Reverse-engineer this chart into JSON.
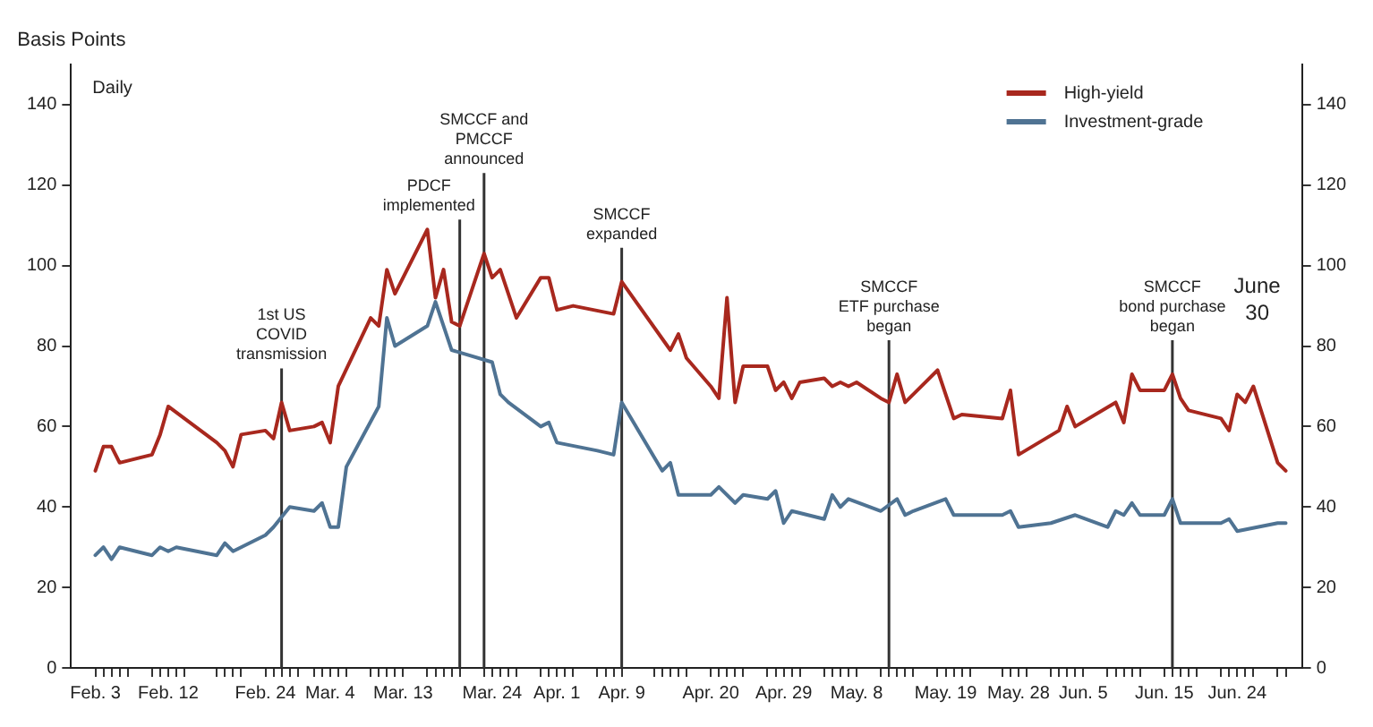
{
  "chart_data": {
    "type": "line",
    "ylabel": "Basis Points",
    "annotations": [
      "Daily",
      "June\n30"
    ],
    "legend": "top right",
    "xlim": [
      "--01-31",
      "--07-02"
    ],
    "ylim": [
      0,
      150
    ],
    "yticks": [
      0,
      20,
      40,
      60,
      80,
      100,
      120,
      140
    ],
    "y2lim": [
      0,
      150
    ],
    "y2ticks": [
      0,
      20,
      40,
      60,
      80,
      100,
      120,
      140
    ],
    "xticks": [
      {
        "value": "--02-03",
        "label": "Feb. 3"
      },
      {
        "value": "--02-04",
        "label": null
      },
      {
        "value": "--02-05",
        "label": null
      },
      {
        "value": "--02-06",
        "label": null
      },
      {
        "value": "--02-07",
        "label": null
      },
      {
        "value": "--02-10",
        "label": null
      },
      {
        "value": "--02-11",
        "label": null
      },
      {
        "value": "--02-12",
        "label": "Feb. 12"
      },
      {
        "value": "--02-13",
        "label": null
      },
      {
        "value": "--02-14",
        "label": null
      },
      {
        "value": "--02-18",
        "label": null
      },
      {
        "value": "--02-19",
        "label": null
      },
      {
        "value": "--02-20",
        "label": null
      },
      {
        "value": "--02-21",
        "label": null
      },
      {
        "value": "--02-24",
        "label": "Feb. 24"
      },
      {
        "value": "--02-25",
        "label": null
      },
      {
        "value": "--02-26",
        "label": null
      },
      {
        "value": "--02-27",
        "label": null
      },
      {
        "value": "--02-28",
        "label": null
      },
      {
        "value": "--03-02",
        "label": null
      },
      {
        "value": "--03-03",
        "label": null
      },
      {
        "value": "--03-04",
        "label": "Mar. 4"
      },
      {
        "value": "--03-05",
        "label": null
      },
      {
        "value": "--03-06",
        "label": null
      },
      {
        "value": "--03-09",
        "label": null
      },
      {
        "value": "--03-10",
        "label": null
      },
      {
        "value": "--03-11",
        "label": null
      },
      {
        "value": "--03-12",
        "label": null
      },
      {
        "value": "--03-13",
        "label": "Mar. 13"
      },
      {
        "value": "--03-16",
        "label": null
      },
      {
        "value": "--03-17",
        "label": null
      },
      {
        "value": "--03-18",
        "label": null
      },
      {
        "value": "--03-19",
        "label": null
      },
      {
        "value": "--03-20",
        "label": null
      },
      {
        "value": "--03-23",
        "label": null
      },
      {
        "value": "--03-24",
        "label": "Mar. 24"
      },
      {
        "value": "--03-25",
        "label": null
      },
      {
        "value": "--03-26",
        "label": null
      },
      {
        "value": "--03-27",
        "label": null
      },
      {
        "value": "--03-30",
        "label": null
      },
      {
        "value": "--03-31",
        "label": null
      },
      {
        "value": "--04-01",
        "label": "Apr. 1"
      },
      {
        "value": "--04-02",
        "label": null
      },
      {
        "value": "--04-03",
        "label": null
      },
      {
        "value": "--04-06",
        "label": null
      },
      {
        "value": "--04-07",
        "label": null
      },
      {
        "value": "--04-08",
        "label": null
      },
      {
        "value": "--04-09",
        "label": "Apr. 9"
      },
      {
        "value": "--04-13",
        "label": null
      },
      {
        "value": "--04-14",
        "label": null
      },
      {
        "value": "--04-15",
        "label": null
      },
      {
        "value": "--04-16",
        "label": null
      },
      {
        "value": "--04-17",
        "label": null
      },
      {
        "value": "--04-20",
        "label": "Apr. 20"
      },
      {
        "value": "--04-21",
        "label": null
      },
      {
        "value": "--04-22",
        "label": null
      },
      {
        "value": "--04-23",
        "label": null
      },
      {
        "value": "--04-24",
        "label": null
      },
      {
        "value": "--04-27",
        "label": null
      },
      {
        "value": "--04-28",
        "label": null
      },
      {
        "value": "--04-29",
        "label": "Apr. 29"
      },
      {
        "value": "--04-30",
        "label": null
      },
      {
        "value": "--05-01",
        "label": null
      },
      {
        "value": "--05-04",
        "label": null
      },
      {
        "value": "--05-05",
        "label": null
      },
      {
        "value": "--05-06",
        "label": null
      },
      {
        "value": "--05-07",
        "label": null
      },
      {
        "value": "--05-08",
        "label": "May. 8"
      },
      {
        "value": "--05-11",
        "label": null
      },
      {
        "value": "--05-12",
        "label": null
      },
      {
        "value": "--05-13",
        "label": null
      },
      {
        "value": "--05-14",
        "label": null
      },
      {
        "value": "--05-15",
        "label": null
      },
      {
        "value": "--05-18",
        "label": null
      },
      {
        "value": "--05-19",
        "label": "May. 19"
      },
      {
        "value": "--05-20",
        "label": null
      },
      {
        "value": "--05-21",
        "label": null
      },
      {
        "value": "--05-22",
        "label": null
      },
      {
        "value": "--05-26",
        "label": null
      },
      {
        "value": "--05-27",
        "label": null
      },
      {
        "value": "--05-28",
        "label": "May. 28"
      },
      {
        "value": "--05-29",
        "label": null
      },
      {
        "value": "--06-01",
        "label": null
      },
      {
        "value": "--06-02",
        "label": null
      },
      {
        "value": "--06-03",
        "label": null
      },
      {
        "value": "--06-04",
        "label": null
      },
      {
        "value": "--06-05",
        "label": "Jun. 5"
      },
      {
        "value": "--06-08",
        "label": null
      },
      {
        "value": "--06-09",
        "label": null
      },
      {
        "value": "--06-10",
        "label": null
      },
      {
        "value": "--06-11",
        "label": null
      },
      {
        "value": "--06-12",
        "label": null
      },
      {
        "value": "--06-15",
        "label": "Jun. 15"
      },
      {
        "value": "--06-16",
        "label": null
      },
      {
        "value": "--06-17",
        "label": null
      },
      {
        "value": "--06-18",
        "label": null
      },
      {
        "value": "--06-19",
        "label": null
      },
      {
        "value": "--06-22",
        "label": null
      },
      {
        "value": "--06-23",
        "label": null
      },
      {
        "value": "--06-24",
        "label": "Jun. 24"
      },
      {
        "value": "--06-25",
        "label": null
      },
      {
        "value": "--06-26",
        "label": null
      },
      {
        "value": "--06-29",
        "label": null
      },
      {
        "value": "--06-30",
        "label": null
      }
    ],
    "ref_lines": [
      {
        "axis": "x",
        "value": "--02-26",
        "label": "1st US\nCOVID\ntransmission"
      },
      {
        "axis": "x",
        "value": "--03-20",
        "label": "PDCF\nimplemented"
      },
      {
        "axis": "x",
        "value": "--03-23",
        "label": "SMCCF and\nPMCCF\nannounced"
      },
      {
        "axis": "x",
        "value": "--04-09",
        "label": "SMCCF\nexpanded"
      },
      {
        "axis": "x",
        "value": "--05-12",
        "label": "SMCCF\nETF purchase\nbegan"
      },
      {
        "axis": "x",
        "value": "--06-16",
        "label": "SMCCF\nbond purchase\nbegan"
      }
    ],
    "series": [
      {
        "name": "High-yield",
        "color": "#a8281e",
        "x": [
          "--02-03",
          "--02-04",
          "--02-05",
          "--02-06",
          "--02-10",
          "--02-11",
          "--02-12",
          "--02-18",
          "--02-19",
          "--02-20",
          "--02-21",
          "--02-24",
          "--02-25",
          "--02-26",
          "--02-27",
          "--03-02",
          "--03-03",
          "--03-04",
          "--03-05",
          "--03-09",
          "--03-10",
          "--03-11",
          "--03-12",
          "--03-16",
          "--03-17",
          "--03-18",
          "--03-19",
          "--03-20",
          "--03-23",
          "--03-24",
          "--03-25",
          "--03-27",
          "--03-30",
          "--03-31",
          "--04-01",
          "--04-03",
          "--04-08",
          "--04-09",
          "--04-15",
          "--04-16",
          "--04-17",
          "--04-20",
          "--04-21",
          "--04-22",
          "--04-23",
          "--04-24",
          "--04-27",
          "--04-28",
          "--04-29",
          "--04-30",
          "--05-01",
          "--05-04",
          "--05-05",
          "--05-06",
          "--05-07",
          "--05-08",
          "--05-11",
          "--05-12",
          "--05-13",
          "--05-14",
          "--05-18",
          "--05-20",
          "--05-21",
          "--05-26",
          "--05-27",
          "--05-28",
          "--06-02",
          "--06-03",
          "--06-04",
          "--06-09",
          "--06-10",
          "--06-11",
          "--06-12",
          "--06-15",
          "--06-16",
          "--06-17",
          "--06-18",
          "--06-22",
          "--06-23",
          "--06-24",
          "--06-25",
          "--06-26",
          "--06-29",
          "--06-30"
        ],
        "values": [
          49,
          55,
          55,
          51,
          53,
          58,
          65,
          56,
          54,
          50,
          58,
          59,
          57,
          66,
          59,
          60,
          61,
          56,
          70,
          87,
          85,
          99,
          93,
          109,
          92,
          99,
          86,
          85,
          103,
          97,
          99,
          87,
          97,
          97,
          89,
          90,
          88,
          96,
          79,
          83,
          77,
          70,
          67,
          92,
          66,
          75,
          75,
          69,
          71,
          67,
          71,
          72,
          70,
          71,
          70,
          71,
          67,
          66,
          73,
          66,
          74,
          62,
          63,
          62,
          69,
          53,
          59,
          65,
          60,
          66,
          61,
          73,
          69,
          69,
          73,
          67,
          64,
          62,
          59,
          68,
          66,
          70,
          51,
          49
        ]
      },
      {
        "name": "Investment-grade",
        "color": "#4f7393",
        "x": [
          "--02-03",
          "--02-04",
          "--02-05",
          "--02-06",
          "--02-10",
          "--02-11",
          "--02-12",
          "--02-13",
          "--02-18",
          "--02-19",
          "--02-20",
          "--02-24",
          "--02-25",
          "--02-27",
          "--03-02",
          "--03-03",
          "--03-04",
          "--03-05",
          "--03-06",
          "--03-10",
          "--03-11",
          "--03-12",
          "--03-16",
          "--03-17",
          "--03-18",
          "--03-19",
          "--03-24",
          "--03-25",
          "--03-26",
          "--03-30",
          "--03-31",
          "--04-01",
          "--04-06",
          "--04-08",
          "--04-09",
          "--04-14",
          "--04-15",
          "--04-16",
          "--04-20",
          "--04-21",
          "--04-23",
          "--04-24",
          "--04-27",
          "--04-28",
          "--04-29",
          "--04-30",
          "--05-04",
          "--05-05",
          "--05-06",
          "--05-07",
          "--05-11",
          "--05-13",
          "--05-14",
          "--05-15",
          "--05-19",
          "--05-20",
          "--05-26",
          "--05-27",
          "--05-28",
          "--06-01",
          "--06-04",
          "--06-08",
          "--06-09",
          "--06-10",
          "--06-11",
          "--06-12",
          "--06-15",
          "--06-16",
          "--06-17",
          "--06-22",
          "--06-23",
          "--06-24",
          "--06-29",
          "--06-30"
        ],
        "values": [
          28,
          30,
          27,
          30,
          28,
          30,
          29,
          30,
          28,
          31,
          29,
          33,
          35,
          40,
          39,
          41,
          35,
          35,
          50,
          65,
          87,
          80,
          85,
          91,
          85,
          79,
          76,
          68,
          66,
          60,
          61,
          56,
          54,
          53,
          66,
          49,
          51,
          43,
          43,
          45,
          41,
          43,
          42,
          44,
          36,
          39,
          37,
          43,
          40,
          42,
          39,
          42,
          38,
          39,
          42,
          38,
          38,
          39,
          35,
          36,
          38,
          35,
          39,
          38,
          41,
          38,
          38,
          42,
          36,
          36,
          37,
          34,
          36,
          36
        ]
      }
    ]
  }
}
